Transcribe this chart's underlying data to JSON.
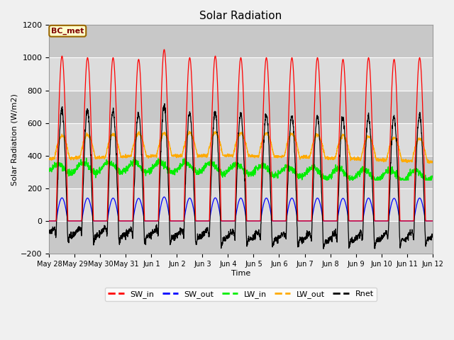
{
  "title": "Solar Radiation",
  "xlabel": "Time",
  "ylabel": "Solar Radiation (W/m2)",
  "ylim": [
    -200,
    1200
  ],
  "yticks": [
    -200,
    0,
    200,
    400,
    600,
    800,
    1000,
    1200
  ],
  "annotation_text": "BC_met",
  "annotation_bg": "#ffffcc",
  "annotation_border": "#996600",
  "line_colors": {
    "SW_in": "#ff0000",
    "SW_out": "#0000ff",
    "LW_in": "#00ee00",
    "LW_out": "#ffaa00",
    "Rnet": "#000000"
  },
  "legend_labels": [
    "SW_in",
    "SW_out",
    "LW_in",
    "LW_out",
    "Rnet"
  ],
  "x_tick_labels": [
    "May 28",
    "May 29",
    "May 30",
    "May 31",
    "Jun 1",
    "Jun 2",
    "Jun 3",
    "Jun 4",
    "Jun 5",
    "Jun 6",
    "Jun 7",
    "Jun 8",
    "Jun 9",
    "Jun 10",
    "Jun 11",
    "Jun 12"
  ],
  "num_days": 15,
  "points_per_day": 144,
  "plot_bg": "#dcdcdc",
  "fig_bg": "#f0f0f0",
  "grid_color": "#ffffff"
}
